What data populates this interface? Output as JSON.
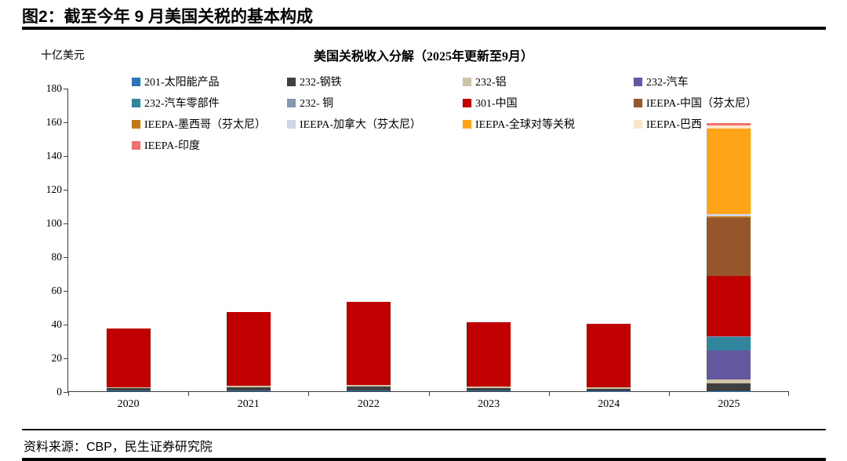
{
  "header": {
    "title": "图2：截至今年 9 月美国关税的基本构成"
  },
  "footer": {
    "source": "资料来源：CBP，民生证券研究院"
  },
  "chart_data": {
    "type": "bar",
    "stacked": true,
    "title": "美国关税收入分解（2025年更新至9月）",
    "unit_label": "十亿美元",
    "xlabel": "",
    "ylabel": "十亿美元",
    "ylim": [
      0,
      180
    ],
    "yticks": [
      0,
      20,
      40,
      60,
      80,
      100,
      120,
      140,
      160,
      180
    ],
    "grid": false,
    "legend_position": "top",
    "categories": [
      "2020",
      "2021",
      "2022",
      "2023",
      "2024",
      "2025"
    ],
    "series": [
      {
        "name": "201-太阳能产品",
        "color": "#2E75B6",
        "values": [
          0.4,
          0.4,
          0.3,
          0.3,
          0.2,
          0.2
        ]
      },
      {
        "name": "232-钢铁",
        "color": "#404040",
        "values": [
          1.4,
          2.0,
          2.6,
          1.6,
          1.4,
          4.5
        ]
      },
      {
        "name": "232-铝",
        "color": "#CFC3A7",
        "values": [
          0.6,
          0.8,
          1.0,
          0.7,
          0.6,
          2.3
        ]
      },
      {
        "name": "232-汽车",
        "color": "#6458A0",
        "values": [
          0,
          0,
          0,
          0,
          0,
          17.0
        ]
      },
      {
        "name": "232-汽车零部件",
        "color": "#31859C",
        "values": [
          0,
          0,
          0,
          0,
          0,
          8.0
        ]
      },
      {
        "name": "232- 铜",
        "color": "#8496B0",
        "values": [
          0,
          0,
          0,
          0,
          0,
          0.5
        ]
      },
      {
        "name": "301-中国",
        "color": "#C00000",
        "values": [
          34.6,
          43.8,
          49.1,
          38.4,
          37.8,
          36.0
        ]
      },
      {
        "name": "IEEPA-中国（芬太尼）",
        "color": "#96552B",
        "values": [
          0,
          0,
          0,
          0,
          0,
          34.5
        ]
      },
      {
        "name": "IEEPA-墨西哥（芬太尼）",
        "color": "#C07818",
        "values": [
          0,
          0,
          0,
          0,
          0,
          0.8
        ]
      },
      {
        "name": "IEEPA-加拿大（芬太尼）",
        "color": "#CDD6E4",
        "values": [
          0,
          0,
          0,
          0,
          0,
          1.5
        ]
      },
      {
        "name": "IEEPA-全球对等关税",
        "color": "#FFA319",
        "values": [
          0,
          0,
          0,
          0,
          0,
          50.5
        ]
      },
      {
        "name": "IEEPA-巴西",
        "color": "#FAE6C8",
        "values": [
          0,
          0,
          0,
          0,
          0,
          1.7
        ]
      },
      {
        "name": "IEEPA-印度",
        "color": "#F2736D",
        "values": [
          0,
          0,
          0,
          0,
          0,
          1.5
        ]
      }
    ]
  }
}
